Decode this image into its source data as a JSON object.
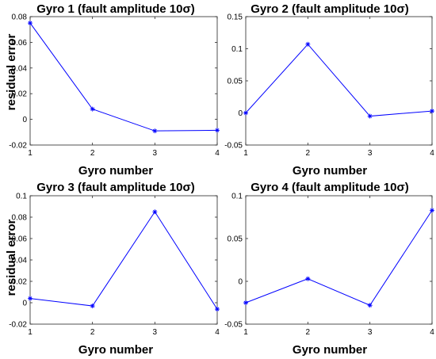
{
  "chart_data": [
    {
      "type": "line",
      "title": "Gyro 1 (fault amplitude 10σ)",
      "xlabel": "Gyro number",
      "ylabel": "residual error",
      "x": [
        1,
        2,
        3,
        4
      ],
      "xticks": [
        "1",
        "2",
        "3",
        "4"
      ],
      "xlim": [
        1,
        4
      ],
      "ylim": [
        -0.02,
        0.08
      ],
      "yticks": [
        -0.02,
        0,
        0.02,
        0.04,
        0.06,
        0.08
      ],
      "ytick_labels": [
        "-0.02",
        "0",
        "0.02",
        "0.04",
        "0.06",
        "0.08"
      ],
      "series": [
        {
          "values": [
            0.075,
            0.008,
            -0.009,
            -0.0085
          ],
          "color": "#0000ff",
          "marker": "asterisk"
        }
      ],
      "grid": false
    },
    {
      "type": "line",
      "title": "Gyro 2 (fault amplitude 10σ)",
      "xlabel": "Gyro number",
      "ylabel": "",
      "x": [
        1,
        2,
        3,
        4
      ],
      "xticks": [
        "1",
        "2",
        "3",
        "4"
      ],
      "xlim": [
        1,
        4
      ],
      "ylim": [
        -0.05,
        0.15
      ],
      "yticks": [
        -0.05,
        0,
        0.05,
        0.1,
        0.15
      ],
      "ytick_labels": [
        "-0.05",
        "0",
        "0.05",
        "0.1",
        "0.15"
      ],
      "series": [
        {
          "values": [
            0.0,
            0.107,
            -0.005,
            0.003
          ],
          "color": "#0000ff",
          "marker": "asterisk"
        }
      ],
      "grid": false
    },
    {
      "type": "line",
      "title": "Gyro 3 (fault amplitude 10σ)",
      "xlabel": "Gyro number",
      "ylabel": "residual error",
      "x": [
        1,
        2,
        3,
        4
      ],
      "xticks": [
        "1",
        "2",
        "3",
        "4"
      ],
      "xlim": [
        1,
        4
      ],
      "ylim": [
        -0.02,
        0.1
      ],
      "yticks": [
        -0.02,
        0,
        0.02,
        0.04,
        0.06,
        0.08,
        0.1
      ],
      "ytick_labels": [
        "-0.02",
        "0",
        "0.02",
        "0.04",
        "0.06",
        "0.08",
        "0.1"
      ],
      "series": [
        {
          "values": [
            0.004,
            -0.003,
            0.085,
            -0.006
          ],
          "color": "#0000ff",
          "marker": "asterisk"
        }
      ],
      "grid": false
    },
    {
      "type": "line",
      "title": "Gyro 4 (fault amplitude 10σ)",
      "xlabel": "Gyro number",
      "ylabel": "",
      "x": [
        1,
        2,
        3,
        4
      ],
      "xticks": [
        "1",
        "2",
        "3",
        "4"
      ],
      "xlim": [
        1,
        4
      ],
      "ylim": [
        -0.05,
        0.1
      ],
      "yticks": [
        -0.05,
        0,
        0.05,
        0.1
      ],
      "ytick_labels": [
        "-0.05",
        "0",
        "0.05",
        "0.1"
      ],
      "series": [
        {
          "values": [
            -0.025,
            0.003,
            -0.028,
            0.083
          ],
          "color": "#0000ff",
          "marker": "asterisk"
        }
      ],
      "grid": false
    }
  ]
}
